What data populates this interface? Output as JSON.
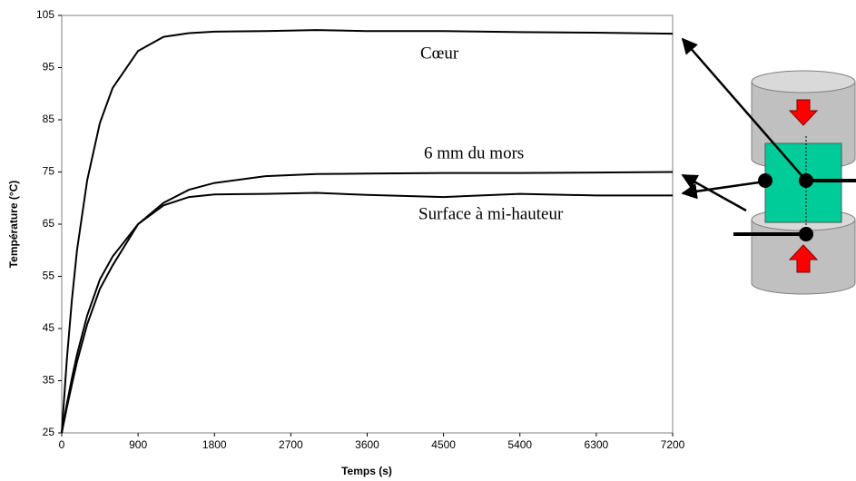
{
  "chart_data": {
    "type": "line",
    "xlabel": "Temps (s)",
    "ylabel": "Température (°C)",
    "annotations": [
      "Cœur",
      "6 mm du mors",
      "Surface à mi-hauteur"
    ],
    "x": [
      0,
      60,
      120,
      180,
      300,
      450,
      600,
      900,
      1200,
      1500,
      1800,
      2400,
      3000,
      3600,
      4500,
      5400,
      6300,
      7200
    ],
    "series": [
      {
        "name": "Cœur",
        "color": "#000000",
        "values": [
          25,
          39,
          50.5,
          60,
          73.4,
          84.4,
          91.1,
          98.2,
          100.9,
          101.6,
          101.9,
          102,
          102.2,
          102,
          102,
          101.8,
          101.7,
          101.5
        ]
      },
      {
        "name": "6 mm du mors",
        "color": "#000000",
        "values": [
          25,
          29.8,
          34.3,
          38.6,
          45.8,
          52.6,
          57.1,
          65,
          69.1,
          71.6,
          72.9,
          74.2,
          74.6,
          74.7,
          74.8,
          74.8,
          74.9,
          75
        ]
      },
      {
        "name": "Surface à mi-hauteur",
        "color": "#000000",
        "values": [
          25,
          30.5,
          35.5,
          40,
          47.5,
          54.4,
          58.8,
          65,
          68.6,
          70.2,
          70.7,
          70.8,
          71,
          70.6,
          70.2,
          70.8,
          70.5,
          70.5
        ]
      }
    ],
    "xlim": [
      0,
      7200
    ],
    "xticks": [
      0,
      900,
      1800,
      2700,
      3600,
      4500,
      5400,
      6300,
      7200
    ],
    "ylim": [
      25,
      105
    ],
    "yticks": [
      25,
      35,
      45,
      55,
      65,
      75,
      85,
      95,
      105
    ],
    "grid": false
  }
}
